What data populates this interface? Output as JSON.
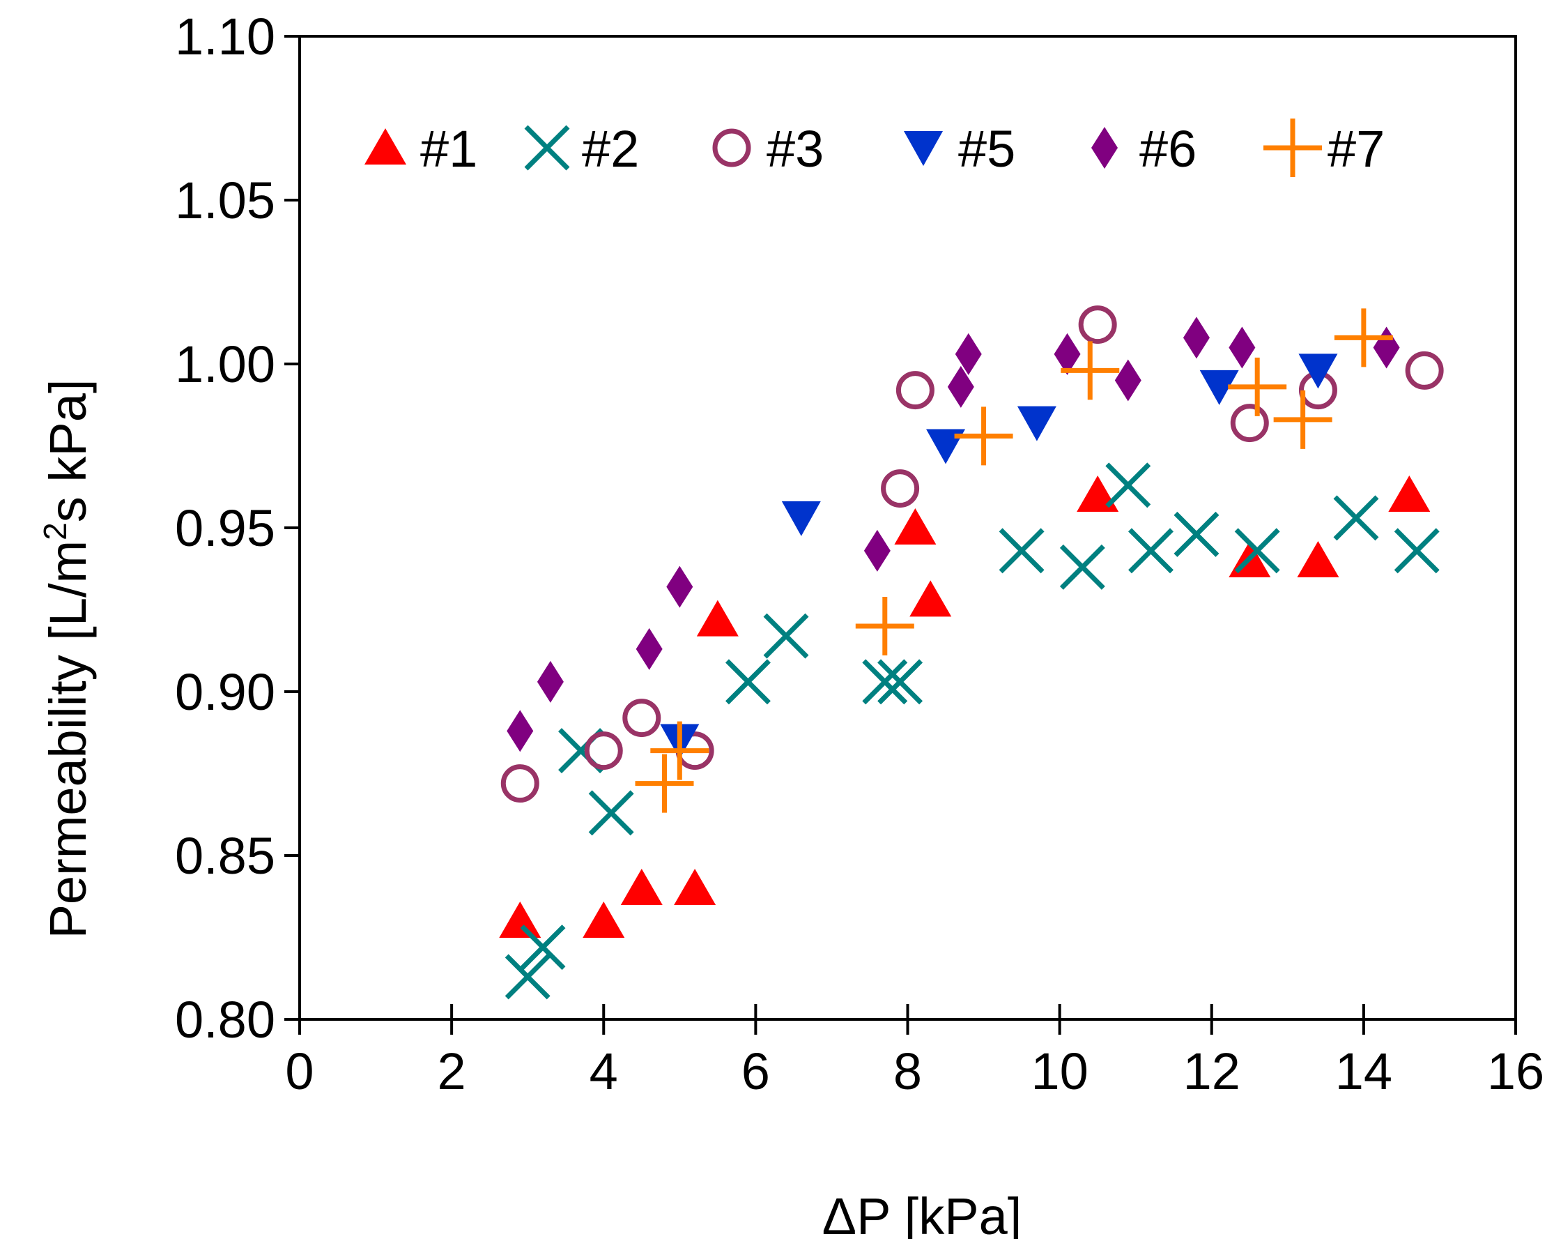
{
  "chart_data": {
    "type": "scatter",
    "xlabel": "ΔP [kPa]",
    "ylabel_parts": [
      "Permeability [L/m",
      "2",
      "s kPa]"
    ],
    "xlim": [
      0,
      16
    ],
    "ylim": [
      0.8,
      1.1
    ],
    "xticks": [
      "0",
      "2",
      "4",
      "6",
      "8",
      "10",
      "12",
      "14",
      "16"
    ],
    "yticks": [
      "0.80",
      "0.85",
      "0.90",
      "0.95",
      "1.00",
      "1.05",
      "1.10"
    ],
    "grid": false,
    "legend_position": "top",
    "series": [
      {
        "name": "#1",
        "marker": "triangle-up",
        "color": "#ff0000",
        "points": [
          [
            2.9,
            0.83
          ],
          [
            4.0,
            0.83
          ],
          [
            4.5,
            0.84
          ],
          [
            5.2,
            0.84
          ],
          [
            5.5,
            0.922
          ],
          [
            8.1,
            0.95
          ],
          [
            8.3,
            0.928
          ],
          [
            10.5,
            0.96
          ],
          [
            12.5,
            0.94
          ],
          [
            13.4,
            0.94
          ],
          [
            14.6,
            0.96
          ]
        ]
      },
      {
        "name": "#2",
        "marker": "x",
        "color": "#008080",
        "points": [
          [
            3.0,
            0.813
          ],
          [
            3.2,
            0.822
          ],
          [
            3.7,
            0.882
          ],
          [
            4.1,
            0.863
          ],
          [
            5.9,
            0.903
          ],
          [
            6.4,
            0.917
          ],
          [
            7.7,
            0.903
          ],
          [
            7.9,
            0.903
          ],
          [
            9.5,
            0.943
          ],
          [
            10.3,
            0.938
          ],
          [
            10.9,
            0.963
          ],
          [
            11.2,
            0.943
          ],
          [
            11.8,
            0.948
          ],
          [
            12.6,
            0.943
          ],
          [
            13.9,
            0.953
          ],
          [
            14.7,
            0.943
          ]
        ]
      },
      {
        "name": "#3",
        "marker": "circle-open",
        "color": "#993366",
        "points": [
          [
            2.9,
            0.872
          ],
          [
            4.0,
            0.882
          ],
          [
            4.5,
            0.892
          ],
          [
            5.2,
            0.882
          ],
          [
            7.9,
            0.962
          ],
          [
            8.1,
            0.992
          ],
          [
            10.5,
            1.012
          ],
          [
            12.5,
            0.982
          ],
          [
            13.4,
            0.992
          ],
          [
            14.8,
            0.998
          ]
        ]
      },
      {
        "name": "#5",
        "marker": "triangle-down",
        "color": "#0033cc",
        "points": [
          [
            5.0,
            0.885
          ],
          [
            6.6,
            0.953
          ],
          [
            8.5,
            0.975
          ],
          [
            9.7,
            0.982
          ],
          [
            12.1,
            0.993
          ],
          [
            13.4,
            0.998
          ]
        ]
      },
      {
        "name": "#6",
        "marker": "diamond",
        "color": "#800080",
        "points": [
          [
            2.9,
            0.888
          ],
          [
            3.3,
            0.903
          ],
          [
            4.6,
            0.913
          ],
          [
            5.0,
            0.932
          ],
          [
            7.6,
            0.943
          ],
          [
            8.7,
            0.993
          ],
          [
            8.8,
            1.003
          ],
          [
            10.1,
            1.003
          ],
          [
            10.9,
            0.995
          ],
          [
            11.8,
            1.008
          ],
          [
            12.4,
            1.005
          ],
          [
            14.3,
            1.005
          ]
        ]
      },
      {
        "name": "#7",
        "marker": "plus",
        "color": "#ff7f00",
        "points": [
          [
            4.8,
            0.872
          ],
          [
            5.0,
            0.882
          ],
          [
            7.7,
            0.92
          ],
          [
            9.0,
            0.978
          ],
          [
            10.4,
            0.998
          ],
          [
            12.6,
            0.993
          ],
          [
            13.2,
            0.983
          ],
          [
            14.0,
            1.008
          ]
        ]
      }
    ]
  }
}
